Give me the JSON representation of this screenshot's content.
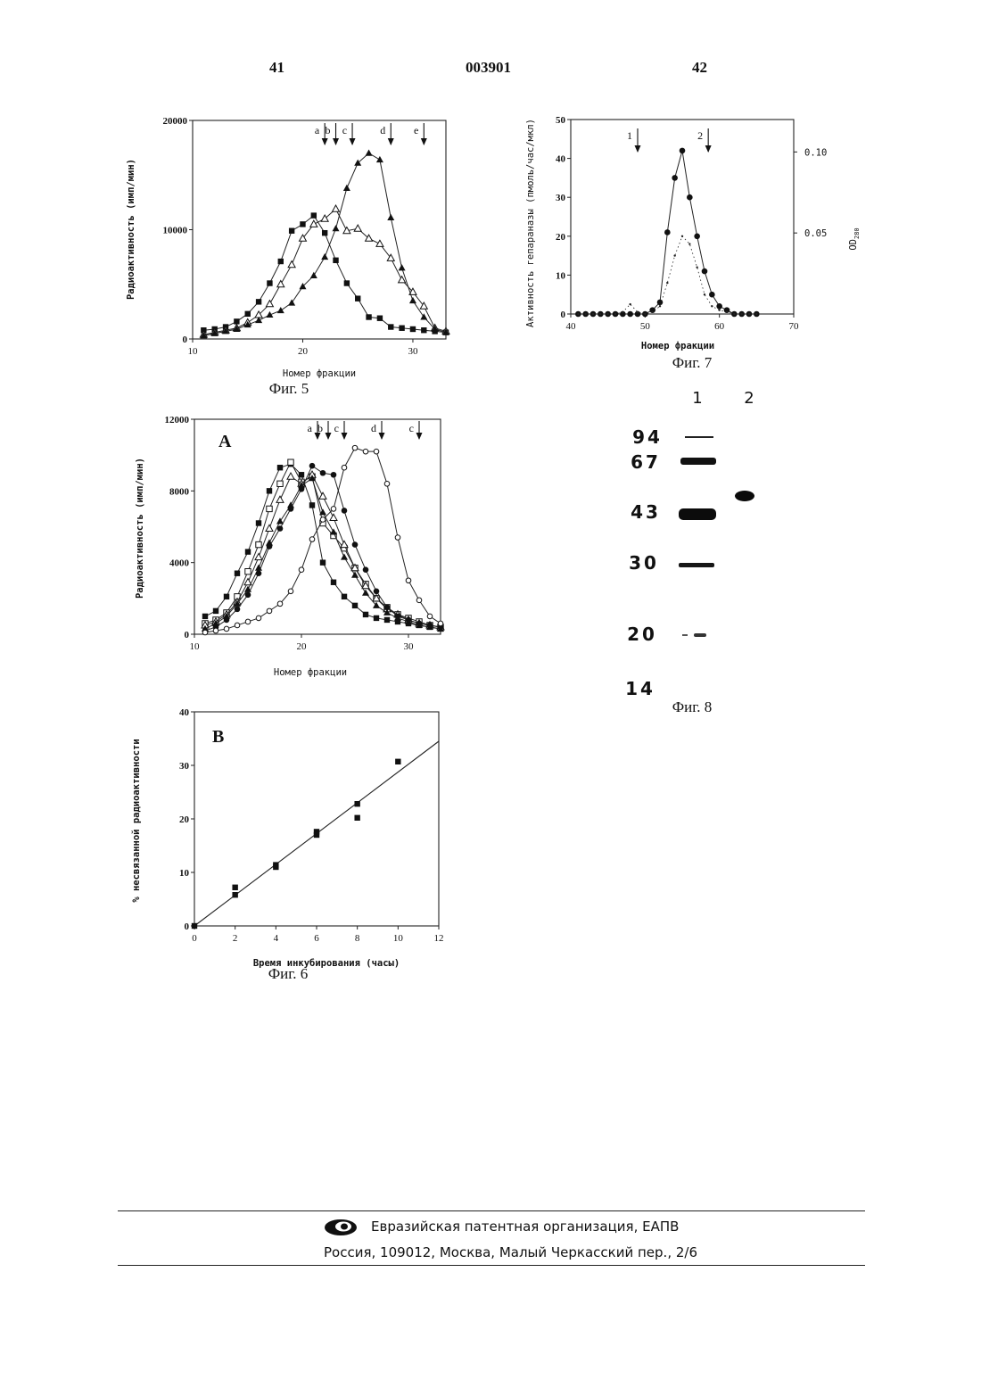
{
  "header": {
    "page_left": "41",
    "patent_number": "003901",
    "page_right": "42"
  },
  "fig5": {
    "caption": "Фиг. 5",
    "ylabel": "Радиоактивность (имп/мин)",
    "xlabel": "Номер фракции",
    "arrows": [
      "a",
      "b",
      "c",
      "d",
      "e"
    ],
    "chart_data": {
      "type": "line",
      "xlim": [
        10,
        33
      ],
      "ylim": [
        0,
        20000
      ],
      "x_ticks": [
        "10",
        "20",
        "30"
      ],
      "y_ticks": [
        "0",
        "10000",
        "20000"
      ],
      "x": [
        11,
        12,
        13,
        14,
        15,
        16,
        17,
        18,
        19,
        20,
        21,
        22,
        23,
        24,
        25,
        26,
        27,
        28,
        29,
        30,
        31,
        32,
        33
      ],
      "series": [
        {
          "marker": "filled-square",
          "values": [
            800,
            900,
            1100,
            1600,
            2300,
            3400,
            5100,
            7100,
            9900,
            10500,
            11300,
            9700,
            7200,
            5100,
            3700,
            2000,
            1900,
            1100,
            1000,
            900,
            800,
            700,
            600
          ]
        },
        {
          "marker": "open-triangle",
          "values": [
            400,
            600,
            800,
            1000,
            1500,
            2200,
            3200,
            5000,
            6800,
            9200,
            10500,
            11000,
            11900,
            9900,
            10100,
            9200,
            8700,
            7400,
            5400,
            4300,
            3000,
            1000,
            700
          ]
        },
        {
          "marker": "filled-triangle",
          "values": [
            300,
            500,
            700,
            900,
            1300,
            1700,
            2200,
            2600,
            3300,
            4800,
            5800,
            7500,
            10100,
            13800,
            16100,
            17000,
            16400,
            11100,
            6500,
            3500,
            2000,
            900,
            600
          ]
        }
      ],
      "arrow_positions_x": [
        22,
        23,
        24.5,
        28,
        31
      ]
    }
  },
  "fig6a": {
    "panel": "A",
    "ylabel": "Радиоактивность (имп/мин)",
    "xlabel": "Номер фракции",
    "arrows": [
      "a",
      "b",
      "c",
      "d",
      "c"
    ],
    "chart_data": {
      "type": "line",
      "xlim": [
        10,
        33
      ],
      "ylim": [
        0,
        12000
      ],
      "x_ticks": [
        "10",
        "20",
        "30"
      ],
      "y_ticks": [
        "0",
        "4000",
        "8000",
        "12000"
      ],
      "x": [
        11,
        12,
        13,
        14,
        15,
        16,
        17,
        18,
        19,
        20,
        21,
        22,
        23,
        24,
        25,
        26,
        27,
        28,
        29,
        30,
        31,
        32,
        33
      ],
      "series": [
        {
          "marker": "filled-square",
          "values": [
            1000,
            1300,
            2100,
            3400,
            4600,
            6200,
            8000,
            9300,
            9500,
            8900,
            7200,
            4000,
            2900,
            2100,
            1600,
            1100,
            900,
            800,
            700,
            600,
            500,
            400,
            300
          ]
        },
        {
          "marker": "open-square",
          "values": [
            600,
            800,
            1200,
            2100,
            3500,
            5000,
            7000,
            8400,
            9600,
            8500,
            8800,
            6200,
            5500,
            4800,
            3700,
            2800,
            2000,
            1500,
            1100,
            900,
            700,
            500,
            400
          ]
        },
        {
          "marker": "open-triangle",
          "values": [
            500,
            700,
            1100,
            1800,
            2900,
            4300,
            5900,
            7500,
            8800,
            8400,
            8900,
            7700,
            6500,
            5000,
            3700,
            2700,
            2000,
            1400,
            1100,
            800,
            600,
            500,
            400
          ]
        },
        {
          "marker": "filled-triangle",
          "values": [
            300,
            600,
            1000,
            1700,
            2500,
            3700,
            5100,
            6300,
            7200,
            8300,
            8700,
            6800,
            5700,
            4300,
            3300,
            2300,
            1600,
            1200,
            900,
            700,
            500,
            400,
            300
          ]
        },
        {
          "marker": "filled-circle",
          "values": [
            200,
            400,
            800,
            1400,
            2200,
            3400,
            4900,
            5900,
            7000,
            8100,
            9400,
            9000,
            8900,
            6900,
            5000,
            3600,
            2400,
            1500,
            1000,
            800,
            600,
            500,
            400
          ]
        },
        {
          "marker": "open-circle",
          "values": [
            100,
            200,
            300,
            500,
            700,
            900,
            1300,
            1700,
            2400,
            3600,
            5300,
            6400,
            7000,
            9300,
            10400,
            10200,
            10200,
            8400,
            5400,
            3000,
            1900,
            1000,
            600
          ]
        }
      ],
      "arrow_positions_x": [
        21.5,
        22.5,
        24,
        27.5,
        31
      ]
    }
  },
  "fig6b": {
    "panel": "B",
    "caption": "Фиг. 6",
    "ylabel": "% несвязанной радиоактивности",
    "xlabel": "Время инкубирования (часы)",
    "chart_data": {
      "type": "scatter",
      "xlim": [
        0,
        12
      ],
      "ylim": [
        0,
        40
      ],
      "x_ticks": [
        "0",
        "2",
        "4",
        "6",
        "8",
        "10",
        "12"
      ],
      "y_ticks": [
        "0",
        "10",
        "20",
        "30",
        "40"
      ],
      "points": [
        [
          0,
          0
        ],
        [
          2,
          7.2
        ],
        [
          2,
          5.8
        ],
        [
          4,
          11.4
        ],
        [
          4,
          11.0
        ],
        [
          6,
          17.6
        ],
        [
          6,
          17.0
        ],
        [
          8,
          22.8
        ],
        [
          8,
          20.2
        ],
        [
          10,
          30.7
        ]
      ],
      "trendline": {
        "x": [
          0,
          12
        ],
        "y": [
          0,
          34.5
        ]
      }
    }
  },
  "fig7": {
    "caption": "Фиг. 7",
    "ylabel": "Активность гепараназы (пмоль/час/мкл)",
    "ylabel_right": "OD",
    "ylabel_right_sub": "280",
    "xlabel": "Номер фракции",
    "arrows": [
      "1",
      "2"
    ],
    "chart_data": {
      "type": "line",
      "xlim": [
        40,
        70
      ],
      "ylim": [
        0,
        50
      ],
      "y2lim": [
        0,
        0.12
      ],
      "x_ticks": [
        "40",
        "50",
        "60",
        "70"
      ],
      "y_ticks": [
        "0",
        "10",
        "20",
        "30",
        "40",
        "50"
      ],
      "y2_ticks": [
        "0.05",
        "0.10"
      ],
      "arrow_positions_x": [
        49,
        58.5
      ],
      "series": [
        {
          "name": "",
          "marker": "filled-circle",
          "x": [
            41,
            42,
            43,
            44,
            45,
            46,
            47,
            48,
            49,
            50,
            51,
            52,
            53,
            54,
            55,
            56,
            57,
            58,
            59,
            60,
            61,
            62,
            63,
            64,
            65
          ],
          "values": [
            0,
            0,
            0,
            0,
            0,
            0,
            0,
            0,
            0,
            0,
            1,
            3,
            21,
            35,
            42,
            30,
            20,
            11,
            5,
            2,
            1,
            0,
            0,
            0,
            0
          ]
        },
        {
          "name": "",
          "marker": "dots",
          "x": [
            41,
            42,
            43,
            44,
            45,
            46,
            47,
            48,
            49,
            50,
            51,
            52,
            53,
            54,
            55,
            56,
            57,
            58,
            59,
            60,
            61,
            62,
            63,
            64,
            65
          ],
          "values": [
            0,
            0,
            0,
            0,
            0,
            0,
            0.5,
            2.5,
            0.5,
            0,
            0.5,
            2,
            8,
            15,
            20,
            18,
            12,
            5,
            2,
            1,
            0.5,
            0,
            0,
            0,
            0
          ]
        }
      ]
    }
  },
  "fig8": {
    "caption": "Фиг. 8",
    "lanes": [
      "1",
      "2"
    ],
    "markers": [
      "94",
      "67",
      "43",
      "30",
      "20",
      "14"
    ]
  },
  "footer": {
    "org": "Евразийская патентная организация, ЕАПВ",
    "address": "Россия, 109012, Москва, Малый Черкасский пер., 2/6"
  }
}
